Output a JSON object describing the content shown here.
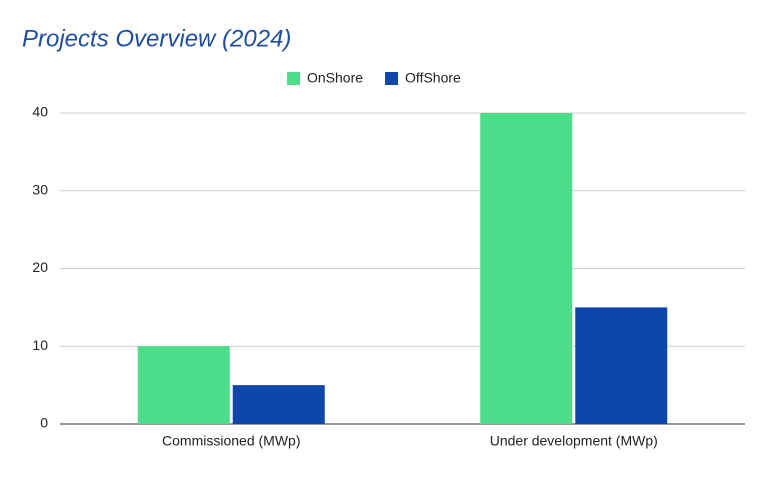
{
  "chart_data": {
    "type": "bar",
    "title": "Projects Overview (2024)",
    "categories": [
      "Commissioned (MWp)",
      "Under development (MWp)"
    ],
    "series": [
      {
        "name": "OnShore",
        "color": "#4ddd8a",
        "values": [
          10,
          40
        ]
      },
      {
        "name": "OffShore",
        "color": "#0f46ab",
        "values": [
          5,
          15
        ]
      }
    ],
    "ylim": [
      0,
      40
    ],
    "yticks": [
      0,
      10,
      20,
      30,
      40
    ],
    "grid": true,
    "legend": "top"
  }
}
